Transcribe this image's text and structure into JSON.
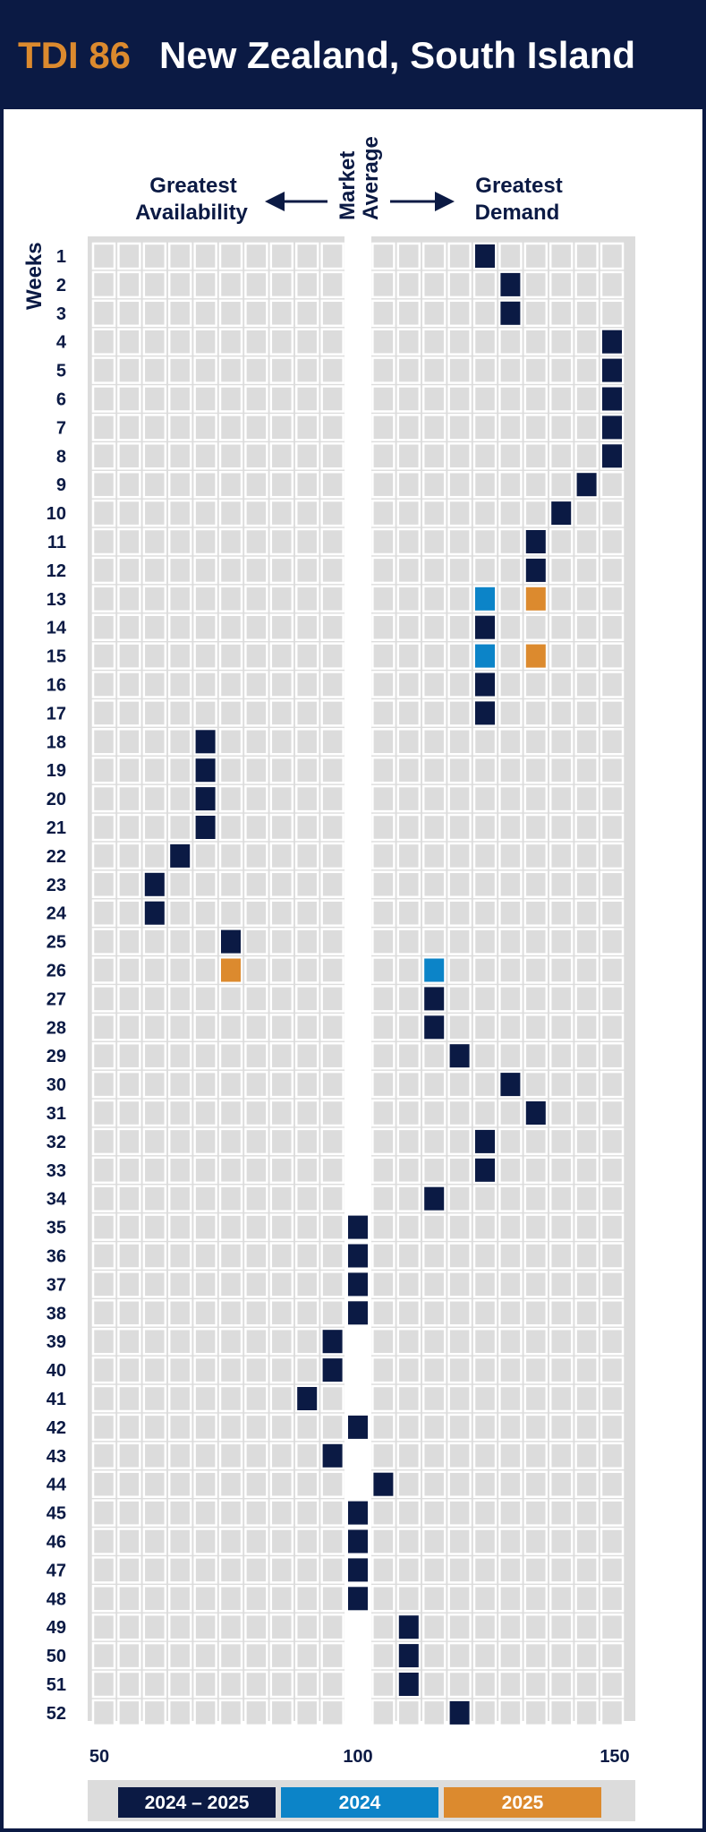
{
  "header": {
    "code": "TDI 86",
    "title": "New Zealand, South Island"
  },
  "direction": {
    "left": [
      "Greatest",
      "Availability"
    ],
    "center": [
      "Market",
      "Average"
    ],
    "right": [
      "Greatest",
      "Demand"
    ]
  },
  "colors": {
    "navy": "#0b1a44",
    "blue": "#0c84c8",
    "orange": "#dc8a2e",
    "cell_bg": "#dcdcdc",
    "grid_bg": "#ffffff"
  },
  "chart_data": {
    "type": "heatmap",
    "title": "New Zealand, South Island",
    "ylabel": "Weeks",
    "xlim": [
      50,
      150
    ],
    "x_ticks": [
      "50",
      "100",
      "150"
    ],
    "weeks": [
      "1",
      "2",
      "3",
      "4",
      "5",
      "6",
      "7",
      "8",
      "9",
      "10",
      "11",
      "12",
      "13",
      "14",
      "15",
      "16",
      "17",
      "18",
      "19",
      "20",
      "21",
      "22",
      "23",
      "24",
      "25",
      "26",
      "27",
      "28",
      "29",
      "30",
      "31",
      "32",
      "33",
      "34",
      "35",
      "36",
      "37",
      "38",
      "39",
      "40",
      "41",
      "42",
      "43",
      "44",
      "45",
      "46",
      "47",
      "48",
      "49",
      "50",
      "51",
      "52"
    ],
    "series": [
      {
        "name": "2024 – 2025",
        "color": "#0b1a44",
        "points": [
          {
            "week": 1,
            "value": 125
          },
          {
            "week": 2,
            "value": 130
          },
          {
            "week": 3,
            "value": 130
          },
          {
            "week": 4,
            "value": 150
          },
          {
            "week": 5,
            "value": 150
          },
          {
            "week": 6,
            "value": 150
          },
          {
            "week": 7,
            "value": 150
          },
          {
            "week": 8,
            "value": 150
          },
          {
            "week": 9,
            "value": 145
          },
          {
            "week": 10,
            "value": 140
          },
          {
            "week": 11,
            "value": 135
          },
          {
            "week": 12,
            "value": 135
          },
          {
            "week": 14,
            "value": 125
          },
          {
            "week": 16,
            "value": 125
          },
          {
            "week": 17,
            "value": 125
          },
          {
            "week": 18,
            "value": 70
          },
          {
            "week": 19,
            "value": 70
          },
          {
            "week": 20,
            "value": 70
          },
          {
            "week": 21,
            "value": 70
          },
          {
            "week": 22,
            "value": 65
          },
          {
            "week": 23,
            "value": 60
          },
          {
            "week": 24,
            "value": 60
          },
          {
            "week": 25,
            "value": 75
          },
          {
            "week": 27,
            "value": 115
          },
          {
            "week": 28,
            "value": 115
          },
          {
            "week": 29,
            "value": 120
          },
          {
            "week": 30,
            "value": 130
          },
          {
            "week": 31,
            "value": 135
          },
          {
            "week": 32,
            "value": 125
          },
          {
            "week": 33,
            "value": 125
          },
          {
            "week": 34,
            "value": 115
          },
          {
            "week": 35,
            "value": 100
          },
          {
            "week": 36,
            "value": 100
          },
          {
            "week": 37,
            "value": 100
          },
          {
            "week": 38,
            "value": 100
          },
          {
            "week": 39,
            "value": 95
          },
          {
            "week": 40,
            "value": 95
          },
          {
            "week": 41,
            "value": 90
          },
          {
            "week": 42,
            "value": 100
          },
          {
            "week": 43,
            "value": 95
          },
          {
            "week": 44,
            "value": 105
          },
          {
            "week": 45,
            "value": 100
          },
          {
            "week": 46,
            "value": 100
          },
          {
            "week": 47,
            "value": 100
          },
          {
            "week": 48,
            "value": 100
          },
          {
            "week": 49,
            "value": 110
          },
          {
            "week": 50,
            "value": 110
          },
          {
            "week": 51,
            "value": 110
          },
          {
            "week": 52,
            "value": 120
          }
        ]
      },
      {
        "name": "2024",
        "color": "#0c84c8",
        "points": [
          {
            "week": 13,
            "value": 125
          },
          {
            "week": 15,
            "value": 125
          },
          {
            "week": 26,
            "value": 115
          }
        ]
      },
      {
        "name": "2025",
        "color": "#dc8a2e",
        "points": [
          {
            "week": 13,
            "value": 135
          },
          {
            "week": 15,
            "value": 135
          },
          {
            "week": 26,
            "value": 75
          }
        ]
      }
    ]
  }
}
